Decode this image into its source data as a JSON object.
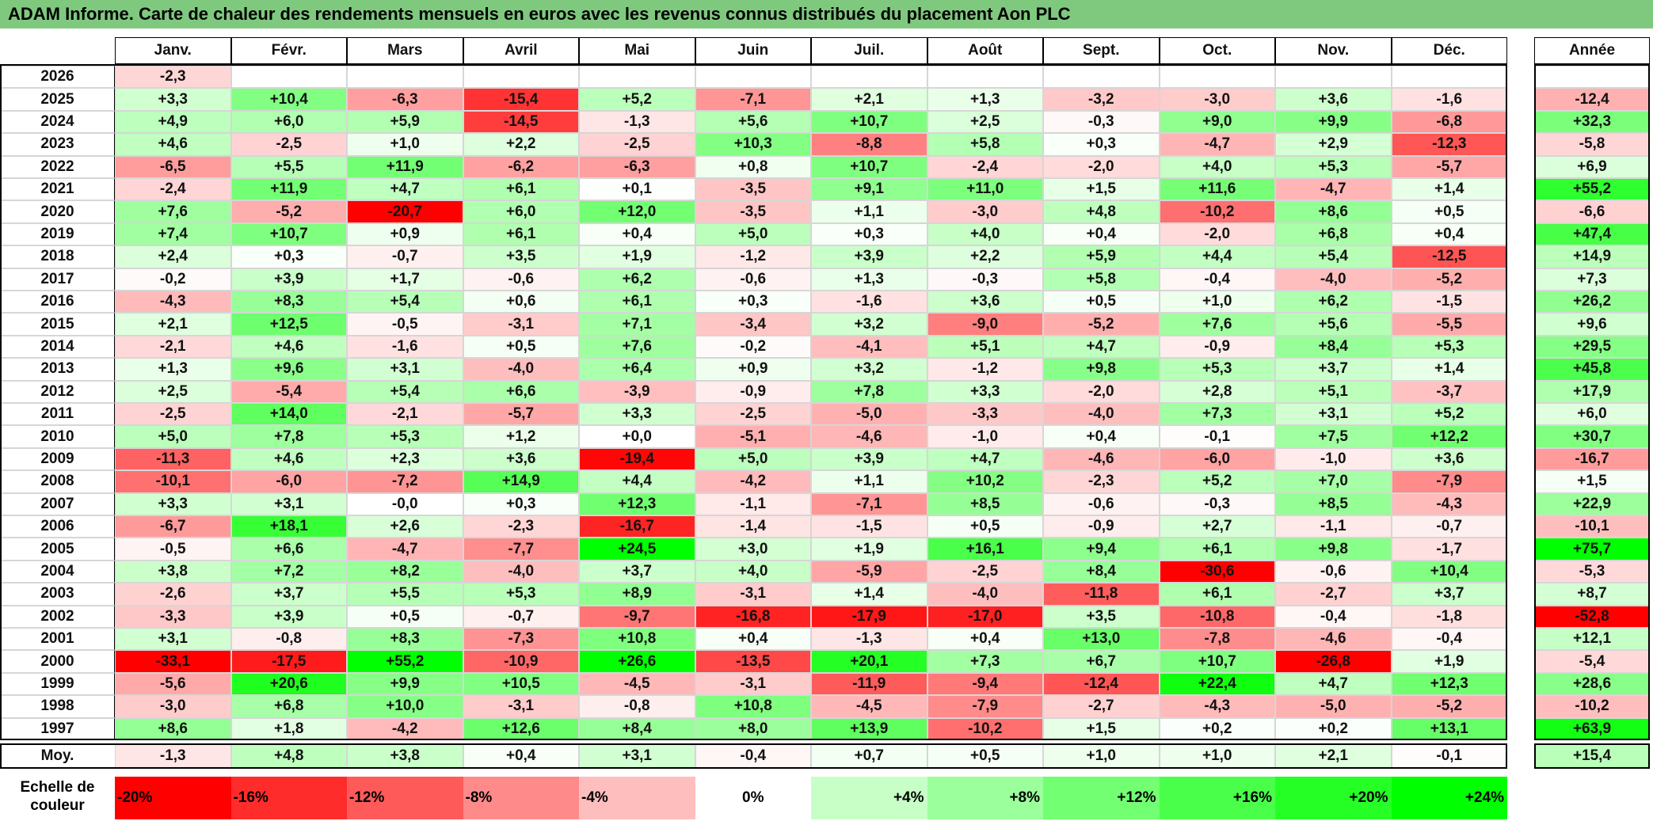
{
  "title": "ADAM Informe. Carte de chaleur des rendements mensuels en euros avec les revenus connus distribués du placement Aon PLC",
  "chart_data": {
    "type": "heatmap",
    "months": [
      "Janv.",
      "Févr.",
      "Mars",
      "Avril",
      "Mai",
      "Juin",
      "Juil.",
      "Août",
      "Sept.",
      "Oct.",
      "Nov.",
      "Déc."
    ],
    "annual_label": "Année",
    "rows": [
      {
        "year": "2026",
        "values": [
          "-2,3",
          null,
          null,
          null,
          null,
          null,
          null,
          null,
          null,
          null,
          null,
          null
        ],
        "annual": null
      },
      {
        "year": "2025",
        "values": [
          "+3,3",
          "+10,4",
          "-6,3",
          "-15,4",
          "+5,2",
          "-7,1",
          "+2,1",
          "+1,3",
          "-3,2",
          "-3,0",
          "+3,6",
          "-1,6"
        ],
        "annual": "-12,4"
      },
      {
        "year": "2024",
        "values": [
          "+4,9",
          "+6,0",
          "+5,9",
          "-14,5",
          "-1,3",
          "+5,6",
          "+10,7",
          "+2,5",
          "-0,3",
          "+9,0",
          "+9,9",
          "-6,8"
        ],
        "annual": "+32,3"
      },
      {
        "year": "2023",
        "values": [
          "+4,6",
          "-2,5",
          "+1,0",
          "+2,2",
          "-2,5",
          "+10,3",
          "-8,8",
          "+5,8",
          "+0,3",
          "-4,7",
          "+2,9",
          "-12,3"
        ],
        "annual": "-5,8"
      },
      {
        "year": "2022",
        "values": [
          "-6,5",
          "+5,5",
          "+11,9",
          "-6,2",
          "-6,3",
          "+0,8",
          "+10,7",
          "-2,4",
          "-2,0",
          "+4,0",
          "+5,3",
          "-5,7"
        ],
        "annual": "+6,9"
      },
      {
        "year": "2021",
        "values": [
          "-2,4",
          "+11,9",
          "+4,7",
          "+6,1",
          "+0,1",
          "-3,5",
          "+9,1",
          "+11,0",
          "+1,5",
          "+11,6",
          "-4,7",
          "+1,4"
        ],
        "annual": "+55,2"
      },
      {
        "year": "2020",
        "values": [
          "+7,6",
          "-5,2",
          "-20,7",
          "+6,0",
          "+12,0",
          "-3,5",
          "+1,1",
          "-3,0",
          "+4,8",
          "-10,2",
          "+8,6",
          "+0,5"
        ],
        "annual": "-6,6"
      },
      {
        "year": "2019",
        "values": [
          "+7,4",
          "+10,7",
          "+0,9",
          "+6,1",
          "+0,4",
          "+5,0",
          "+0,3",
          "+4,0",
          "+0,4",
          "-2,0",
          "+6,8",
          "+0,4"
        ],
        "annual": "+47,4"
      },
      {
        "year": "2018",
        "values": [
          "+2,4",
          "+0,3",
          "-0,7",
          "+3,5",
          "+1,9",
          "-1,2",
          "+3,9",
          "+2,2",
          "+5,9",
          "+4,4",
          "+5,4",
          "-12,5"
        ],
        "annual": "+14,9"
      },
      {
        "year": "2017",
        "values": [
          "-0,2",
          "+3,9",
          "+1,7",
          "-0,6",
          "+6,2",
          "-0,6",
          "+1,3",
          "-0,3",
          "+5,8",
          "-0,4",
          "-4,0",
          "-5,2"
        ],
        "annual": "+7,3"
      },
      {
        "year": "2016",
        "values": [
          "-4,3",
          "+8,3",
          "+5,4",
          "+0,6",
          "+6,1",
          "+0,3",
          "-1,6",
          "+3,6",
          "+0,5",
          "+1,0",
          "+6,2",
          "-1,5"
        ],
        "annual": "+26,2"
      },
      {
        "year": "2015",
        "values": [
          "+2,1",
          "+12,5",
          "-0,5",
          "-3,1",
          "+7,1",
          "-3,4",
          "+3,2",
          "-9,0",
          "-5,2",
          "+7,6",
          "+5,6",
          "-5,5"
        ],
        "annual": "+9,6"
      },
      {
        "year": "2014",
        "values": [
          "-2,1",
          "+4,6",
          "-1,6",
          "+0,5",
          "+7,6",
          "-0,2",
          "-4,1",
          "+5,1",
          "+4,7",
          "-0,9",
          "+8,4",
          "+5,3"
        ],
        "annual": "+29,5"
      },
      {
        "year": "2013",
        "values": [
          "+1,3",
          "+9,6",
          "+3,1",
          "-4,0",
          "+6,4",
          "+0,9",
          "+3,2",
          "-1,2",
          "+9,8",
          "+5,3",
          "+3,7",
          "+1,4"
        ],
        "annual": "+45,8"
      },
      {
        "year": "2012",
        "values": [
          "+2,5",
          "-5,4",
          "+5,4",
          "+6,6",
          "-3,9",
          "-0,9",
          "+7,8",
          "+3,3",
          "-2,0",
          "+2,8",
          "+5,1",
          "-3,7"
        ],
        "annual": "+17,9"
      },
      {
        "year": "2011",
        "values": [
          "-2,5",
          "+14,0",
          "-2,1",
          "-5,7",
          "+3,3",
          "-2,5",
          "-5,0",
          "-3,3",
          "-4,0",
          "+7,3",
          "+3,1",
          "+5,2"
        ],
        "annual": "+6,0"
      },
      {
        "year": "2010",
        "values": [
          "+5,0",
          "+7,8",
          "+5,3",
          "+1,2",
          "+0,0",
          "-5,1",
          "-4,6",
          "-1,0",
          "+0,4",
          "-0,1",
          "+7,5",
          "+12,2"
        ],
        "annual": "+30,7"
      },
      {
        "year": "2009",
        "values": [
          "-11,3",
          "+4,6",
          "+2,3",
          "+3,6",
          "-19,4",
          "+5,0",
          "+3,9",
          "+4,7",
          "-4,6",
          "-6,0",
          "-1,0",
          "+3,6"
        ],
        "annual": "-16,7"
      },
      {
        "year": "2008",
        "values": [
          "-10,1",
          "-6,0",
          "-7,2",
          "+14,9",
          "+4,4",
          "-4,2",
          "+1,1",
          "+10,2",
          "-2,3",
          "+5,2",
          "+7,0",
          "-7,9"
        ],
        "annual": "+1,5"
      },
      {
        "year": "2007",
        "values": [
          "+3,3",
          "+3,1",
          "-0,0",
          "+0,3",
          "+12,3",
          "-1,1",
          "-7,1",
          "+8,5",
          "-0,6",
          "-0,3",
          "+8,5",
          "-4,3"
        ],
        "annual": "+22,9"
      },
      {
        "year": "2006",
        "values": [
          "-6,7",
          "+18,1",
          "+2,6",
          "-2,3",
          "-16,7",
          "-1,4",
          "-1,5",
          "+0,5",
          "-0,9",
          "+2,7",
          "-1,1",
          "-0,7"
        ],
        "annual": "-10,1"
      },
      {
        "year": "2005",
        "values": [
          "-0,5",
          "+6,6",
          "-4,7",
          "-7,7",
          "+24,5",
          "+3,0",
          "+1,9",
          "+16,1",
          "+9,4",
          "+6,1",
          "+9,8",
          "-1,7"
        ],
        "annual": "+75,7"
      },
      {
        "year": "2004",
        "values": [
          "+3,8",
          "+7,2",
          "+8,2",
          "-4,0",
          "+3,7",
          "+4,0",
          "-5,9",
          "-2,5",
          "+8,4",
          "-30,6",
          "-0,6",
          "+10,4"
        ],
        "annual": "-5,3"
      },
      {
        "year": "2003",
        "values": [
          "-2,6",
          "+3,7",
          "+5,5",
          "+5,3",
          "+8,9",
          "-3,1",
          "+1,4",
          "-4,0",
          "-11,8",
          "+6,1",
          "-2,7",
          "+3,7"
        ],
        "annual": "+8,7"
      },
      {
        "year": "2002",
        "values": [
          "-3,3",
          "+3,9",
          "+0,5",
          "-0,7",
          "-9,7",
          "-16,8",
          "-17,9",
          "-17,0",
          "+3,5",
          "-10,8",
          "-0,4",
          "-1,8"
        ],
        "annual": "-52,8"
      },
      {
        "year": "2001",
        "values": [
          "+3,1",
          "-0,8",
          "+8,3",
          "-7,3",
          "+10,8",
          "+0,4",
          "-1,3",
          "+0,4",
          "+13,0",
          "-7,8",
          "-4,6",
          "-0,4"
        ],
        "annual": "+12,1"
      },
      {
        "year": "2000",
        "values": [
          "-33,1",
          "-17,5",
          "+55,2",
          "-10,9",
          "+26,6",
          "-13,5",
          "+20,1",
          "+7,3",
          "+6,7",
          "+10,7",
          "-26,8",
          "+1,9"
        ],
        "annual": "-5,4"
      },
      {
        "year": "1999",
        "values": [
          "-5,6",
          "+20,6",
          "+9,9",
          "+10,5",
          "-4,5",
          "-3,1",
          "-11,9",
          "-9,4",
          "-12,4",
          "+22,4",
          "+4,7",
          "+12,3"
        ],
        "annual": "+28,6"
      },
      {
        "year": "1998",
        "values": [
          "-3,0",
          "+6,8",
          "+10,0",
          "-3,1",
          "-0,8",
          "+10,8",
          "-4,5",
          "-7,9",
          "-2,7",
          "-4,3",
          "-5,0",
          "-5,2"
        ],
        "annual": "-10,2"
      },
      {
        "year": "1997",
        "values": [
          "+8,6",
          "+1,8",
          "-4,2",
          "+12,6",
          "+8,4",
          "+8,0",
          "+13,9",
          "-10,2",
          "+1,5",
          "+0,2",
          "+0,2",
          "+13,1"
        ],
        "annual": "+63,9"
      }
    ],
    "average": {
      "label": "Moy.",
      "values": [
        "-1,3",
        "+4,8",
        "+3,8",
        "+0,4",
        "+3,1",
        "-0,4",
        "+0,7",
        "+0,5",
        "+1,0",
        "+1,0",
        "+2,1",
        "-0,1"
      ],
      "annual": "+15,4"
    },
    "scale": {
      "label": "Echelle de couleur",
      "stops": [
        {
          "label": "-20%",
          "value": -20
        },
        {
          "label": "-16%",
          "value": -16
        },
        {
          "label": "-12%",
          "value": -12
        },
        {
          "label": "-8%",
          "value": -8
        },
        {
          "label": "-4%",
          "value": -4
        },
        {
          "label": "0%",
          "value": 0
        },
        {
          "label": "+4%",
          "value": 4
        },
        {
          "label": "+8%",
          "value": 8
        },
        {
          "label": "+12%",
          "value": 12
        },
        {
          "label": "+16%",
          "value": 16
        },
        {
          "label": "+20%",
          "value": 20
        },
        {
          "label": "+24%",
          "value": 24
        }
      ]
    },
    "colors": {
      "negative": "#ff0000",
      "neutral": "#ffffff",
      "positive": "#00ff00",
      "title_bg": "#7fc97f"
    }
  }
}
